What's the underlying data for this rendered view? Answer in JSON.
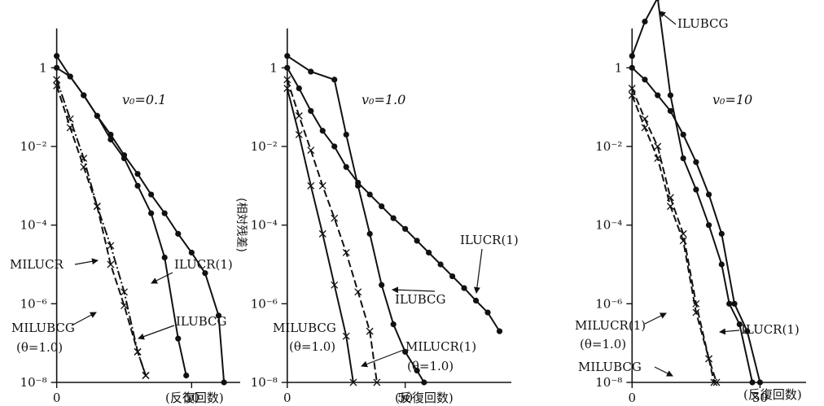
{
  "chart_data": [
    {
      "type": "line",
      "title": "v₀=0.1",
      "ylabel": "",
      "xlabel": "(反復回数)",
      "x_scale": "linear",
      "y_scale": "log",
      "xlim": [
        -2,
        68
      ],
      "ylim": [
        1e-08,
        10
      ],
      "x_ticks": [
        {
          "v": 0,
          "label": "0"
        },
        {
          "v": 50,
          "label": "50"
        }
      ],
      "y_ticks": [
        {
          "v": 1,
          "label": "1"
        },
        {
          "v": 0.01,
          "label": "10⁻²"
        },
        {
          "v": 0.0001,
          "label": "10⁻⁴"
        },
        {
          "v": 1e-06,
          "label": "10⁻⁶"
        },
        {
          "v": 1e-08,
          "label": "10⁻⁸"
        }
      ],
      "series": [
        {
          "name": "ILUCR(1)",
          "marker": "dot",
          "style": "solid",
          "x": [
            0,
            5,
            10,
            15,
            20,
            25,
            30,
            35,
            40,
            45,
            50,
            55,
            60,
            62
          ],
          "y": [
            1,
            0.6,
            0.2,
            0.06,
            0.02,
            0.006,
            0.002,
            0.0006,
            0.0002,
            6e-05,
            2e-05,
            6e-06,
            5e-07,
            1e-08
          ]
        },
        {
          "name": "ILUBCG",
          "marker": "dot",
          "style": "solid",
          "x": [
            0,
            5,
            10,
            15,
            20,
            25,
            30,
            35,
            40,
            45,
            48
          ],
          "y": [
            2,
            0.6,
            0.2,
            0.06,
            0.015,
            0.005,
            0.001,
            0.0002,
            1.5e-05,
            1.3e-07,
            1.5e-08
          ]
        },
        {
          "name": "MILUCR",
          "marker": "cross",
          "style": "dashdot",
          "x": [
            0,
            5,
            10,
            15,
            20,
            25,
            30,
            33
          ],
          "y": [
            0.5,
            0.05,
            0.005,
            0.0003,
            3e-05,
            2e-06,
            6e-08,
            1.5e-08
          ]
        },
        {
          "name": "MILUBCG",
          "marker": "cross",
          "style": "dashed",
          "x": [
            0,
            5,
            10,
            15,
            20,
            25,
            30,
            33
          ],
          "y": [
            0.35,
            0.03,
            0.003,
            0.0003,
            1e-05,
            9e-07,
            6e-08,
            1.5e-08
          ]
        }
      ],
      "annotations": [
        "MILUCR",
        "MILUBCG",
        "(θ=1.0)",
        "ILUCR(1)",
        "ILUBCG"
      ]
    },
    {
      "type": "line",
      "title": "v₀=1.0",
      "ylabel": "(相対残差)",
      "xlabel": "(反復回数)",
      "x_scale": "linear",
      "y_scale": "log",
      "xlim": [
        -2,
        95
      ],
      "ylim": [
        1e-08,
        10
      ],
      "x_ticks": [
        {
          "v": 0,
          "label": "0"
        },
        {
          "v": 50,
          "label": "50"
        }
      ],
      "y_ticks": [
        {
          "v": 1,
          "label": "1"
        },
        {
          "v": 0.01,
          "label": "10⁻²"
        },
        {
          "v": 0.0001,
          "label": "10⁻⁴"
        },
        {
          "v": 1e-06,
          "label": "10⁻⁶"
        },
        {
          "v": 1e-08,
          "label": "10⁻⁸"
        }
      ],
      "series": [
        {
          "name": "ILUCR(1)",
          "marker": "dot",
          "style": "solid",
          "x": [
            0,
            5,
            10,
            15,
            20,
            25,
            30,
            35,
            40,
            45,
            50,
            55,
            60,
            65,
            70,
            75,
            80,
            85,
            90
          ],
          "y": [
            1,
            0.3,
            0.08,
            0.025,
            0.01,
            0.003,
            0.0012,
            0.0006,
            0.0003,
            0.00015,
            8e-05,
            4e-05,
            2e-05,
            1e-05,
            5e-06,
            2.5e-06,
            1.2e-06,
            6e-07,
            2e-07
          ]
        },
        {
          "name": "ILUBCG",
          "marker": "dot",
          "style": "solid",
          "x": [
            0,
            10,
            20,
            25,
            30,
            35,
            40,
            45,
            50,
            55,
            58
          ],
          "y": [
            2,
            0.8,
            0.5,
            0.02,
            0.001,
            6e-05,
            3e-06,
            3e-07,
            6e-08,
            2e-08,
            1e-08
          ]
        },
        {
          "name": "MILUCR(1)",
          "marker": "cross",
          "style": "dashed",
          "x": [
            0,
            5,
            10,
            15,
            20,
            25,
            30,
            35,
            38
          ],
          "y": [
            0.5,
            0.06,
            0.008,
            0.001,
            0.00015,
            2e-05,
            2e-06,
            2e-07,
            1e-08
          ]
        },
        {
          "name": "MILUBCG",
          "marker": "cross",
          "style": "solid",
          "x": [
            0,
            5,
            10,
            15,
            20,
            25,
            28
          ],
          "y": [
            0.3,
            0.02,
            0.001,
            6e-05,
            3e-06,
            1.5e-07,
            1e-08
          ]
        }
      ],
      "annotations": [
        "ILUCR(1)",
        "ILUBCG",
        "MILUBCG",
        "(θ=1.0)",
        "MILUCR(1)",
        "(θ=1.0)"
      ]
    },
    {
      "type": "line",
      "title": "v₀=10",
      "ylabel": "",
      "xlabel": "(反復回数)",
      "x_scale": "linear",
      "y_scale": "log",
      "xlim": [
        -2,
        68
      ],
      "ylim": [
        1e-08,
        10
      ],
      "x_ticks": [
        {
          "v": 0,
          "label": "0"
        },
        {
          "v": 50,
          "label": "50"
        }
      ],
      "y_ticks": [
        {
          "v": 1,
          "label": "1"
        },
        {
          "v": 0.01,
          "label": "10⁻²"
        },
        {
          "v": 0.0001,
          "label": "10⁻⁴"
        },
        {
          "v": 1e-06,
          "label": "10⁻⁶"
        },
        {
          "v": 1e-08,
          "label": "10⁻⁸"
        }
      ],
      "series": [
        {
          "name": "ILUBCG",
          "marker": "dot",
          "style": "solid",
          "x": [
            0,
            5,
            10,
            15,
            20,
            25,
            30,
            35,
            38,
            42,
            47
          ],
          "y": [
            2,
            15,
            60,
            0.2,
            0.005,
            0.0008,
            0.0001,
            1e-05,
            1e-06,
            3e-07,
            1e-08
          ]
        },
        {
          "name": "ILUCR(1)",
          "marker": "dot",
          "style": "solid",
          "x": [
            0,
            5,
            10,
            15,
            20,
            25,
            30,
            35,
            40,
            45,
            50
          ],
          "y": [
            1,
            0.5,
            0.2,
            0.08,
            0.02,
            0.004,
            0.0006,
            6e-05,
            1e-06,
            2e-07,
            1e-08
          ]
        },
        {
          "name": "MILUCR(1)",
          "marker": "cross",
          "style": "dashed",
          "x": [
            0,
            5,
            10,
            15,
            20,
            25,
            30,
            33
          ],
          "y": [
            0.3,
            0.05,
            0.01,
            0.0005,
            6e-05,
            1e-06,
            4e-08,
            1e-08
          ]
        },
        {
          "name": "MILUBCG",
          "marker": "cross",
          "style": "dashed",
          "x": [
            0,
            5,
            10,
            15,
            20,
            25,
            30,
            32
          ],
          "y": [
            0.2,
            0.03,
            0.005,
            0.0003,
            4e-05,
            6e-07,
            4e-08,
            1e-08
          ]
        }
      ],
      "annotations": [
        "ILUBCG",
        "ILUCR(1)",
        "MILUCR(1)",
        "(θ=1.0)",
        "MILUBCG"
      ]
    }
  ]
}
